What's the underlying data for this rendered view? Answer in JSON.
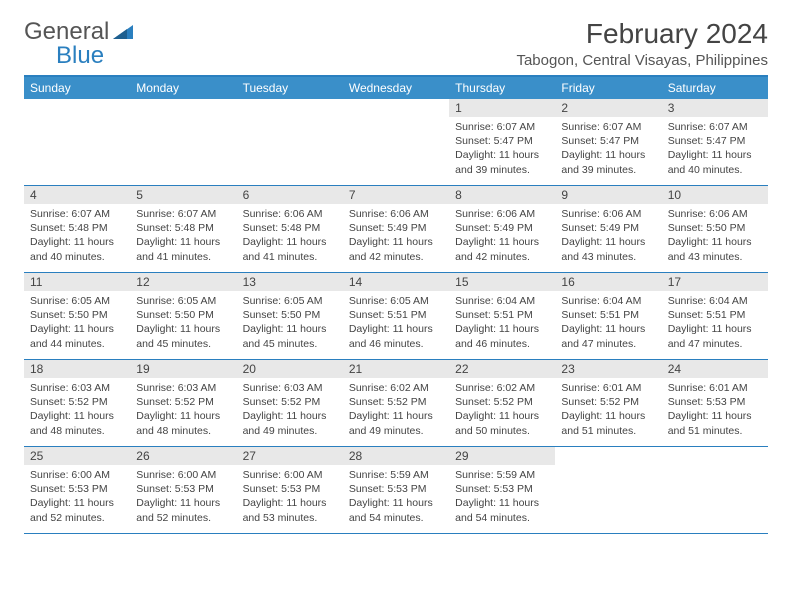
{
  "logo": {
    "text1": "General",
    "text2": "Blue"
  },
  "title": "February 2024",
  "location": "Tabogon, Central Visayas, Philippines",
  "colors": {
    "accent": "#3a8fc9",
    "border": "#2a7fbf",
    "daynum_bg": "#e8e8e8",
    "text": "#444444",
    "logo_gray": "#555555",
    "logo_blue": "#2a7fbf",
    "background": "#ffffff"
  },
  "weekdays": [
    "Sunday",
    "Monday",
    "Tuesday",
    "Wednesday",
    "Thursday",
    "Friday",
    "Saturday"
  ],
  "weeks": [
    [
      null,
      null,
      null,
      null,
      {
        "n": "1",
        "sr": "6:07 AM",
        "ss": "5:47 PM",
        "dl": "11 hours and 39 minutes."
      },
      {
        "n": "2",
        "sr": "6:07 AM",
        "ss": "5:47 PM",
        "dl": "11 hours and 39 minutes."
      },
      {
        "n": "3",
        "sr": "6:07 AM",
        "ss": "5:47 PM",
        "dl": "11 hours and 40 minutes."
      }
    ],
    [
      {
        "n": "4",
        "sr": "6:07 AM",
        "ss": "5:48 PM",
        "dl": "11 hours and 40 minutes."
      },
      {
        "n": "5",
        "sr": "6:07 AM",
        "ss": "5:48 PM",
        "dl": "11 hours and 41 minutes."
      },
      {
        "n": "6",
        "sr": "6:06 AM",
        "ss": "5:48 PM",
        "dl": "11 hours and 41 minutes."
      },
      {
        "n": "7",
        "sr": "6:06 AM",
        "ss": "5:49 PM",
        "dl": "11 hours and 42 minutes."
      },
      {
        "n": "8",
        "sr": "6:06 AM",
        "ss": "5:49 PM",
        "dl": "11 hours and 42 minutes."
      },
      {
        "n": "9",
        "sr": "6:06 AM",
        "ss": "5:49 PM",
        "dl": "11 hours and 43 minutes."
      },
      {
        "n": "10",
        "sr": "6:06 AM",
        "ss": "5:50 PM",
        "dl": "11 hours and 43 minutes."
      }
    ],
    [
      {
        "n": "11",
        "sr": "6:05 AM",
        "ss": "5:50 PM",
        "dl": "11 hours and 44 minutes."
      },
      {
        "n": "12",
        "sr": "6:05 AM",
        "ss": "5:50 PM",
        "dl": "11 hours and 45 minutes."
      },
      {
        "n": "13",
        "sr": "6:05 AM",
        "ss": "5:50 PM",
        "dl": "11 hours and 45 minutes."
      },
      {
        "n": "14",
        "sr": "6:05 AM",
        "ss": "5:51 PM",
        "dl": "11 hours and 46 minutes."
      },
      {
        "n": "15",
        "sr": "6:04 AM",
        "ss": "5:51 PM",
        "dl": "11 hours and 46 minutes."
      },
      {
        "n": "16",
        "sr": "6:04 AM",
        "ss": "5:51 PM",
        "dl": "11 hours and 47 minutes."
      },
      {
        "n": "17",
        "sr": "6:04 AM",
        "ss": "5:51 PM",
        "dl": "11 hours and 47 minutes."
      }
    ],
    [
      {
        "n": "18",
        "sr": "6:03 AM",
        "ss": "5:52 PM",
        "dl": "11 hours and 48 minutes."
      },
      {
        "n": "19",
        "sr": "6:03 AM",
        "ss": "5:52 PM",
        "dl": "11 hours and 48 minutes."
      },
      {
        "n": "20",
        "sr": "6:03 AM",
        "ss": "5:52 PM",
        "dl": "11 hours and 49 minutes."
      },
      {
        "n": "21",
        "sr": "6:02 AM",
        "ss": "5:52 PM",
        "dl": "11 hours and 49 minutes."
      },
      {
        "n": "22",
        "sr": "6:02 AM",
        "ss": "5:52 PM",
        "dl": "11 hours and 50 minutes."
      },
      {
        "n": "23",
        "sr": "6:01 AM",
        "ss": "5:52 PM",
        "dl": "11 hours and 51 minutes."
      },
      {
        "n": "24",
        "sr": "6:01 AM",
        "ss": "5:53 PM",
        "dl": "11 hours and 51 minutes."
      }
    ],
    [
      {
        "n": "25",
        "sr": "6:00 AM",
        "ss": "5:53 PM",
        "dl": "11 hours and 52 minutes."
      },
      {
        "n": "26",
        "sr": "6:00 AM",
        "ss": "5:53 PM",
        "dl": "11 hours and 52 minutes."
      },
      {
        "n": "27",
        "sr": "6:00 AM",
        "ss": "5:53 PM",
        "dl": "11 hours and 53 minutes."
      },
      {
        "n": "28",
        "sr": "5:59 AM",
        "ss": "5:53 PM",
        "dl": "11 hours and 54 minutes."
      },
      {
        "n": "29",
        "sr": "5:59 AM",
        "ss": "5:53 PM",
        "dl": "11 hours and 54 minutes."
      },
      null,
      null
    ]
  ],
  "labels": {
    "sunrise": "Sunrise:",
    "sunset": "Sunset:",
    "daylight": "Daylight:"
  }
}
